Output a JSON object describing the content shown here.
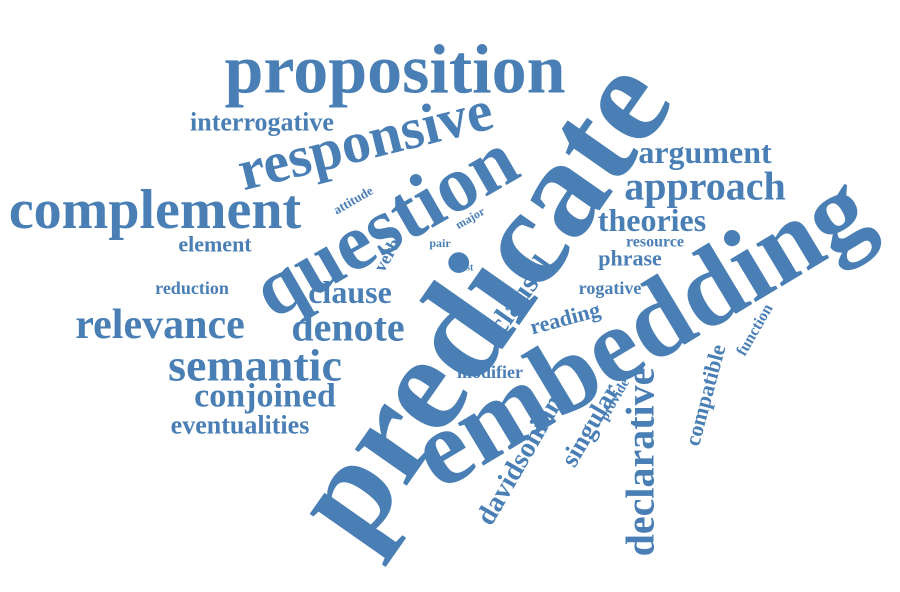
{
  "words": [
    "predicate",
    "embedding",
    "question",
    "proposition",
    "responsive",
    "complement",
    "interrogative",
    "argument",
    "approach",
    "theories",
    "element",
    "attitude",
    "major",
    "pair",
    "list",
    "verb",
    "resource",
    "phrase",
    "clausal",
    "rogative",
    "reading",
    "reduction",
    "clause",
    "relevance",
    "denote",
    "semantic",
    "modifier",
    "conjoined",
    "eventualities",
    "davidsonian",
    "singular",
    "provide",
    "declarative",
    "compatible",
    "function"
  ]
}
